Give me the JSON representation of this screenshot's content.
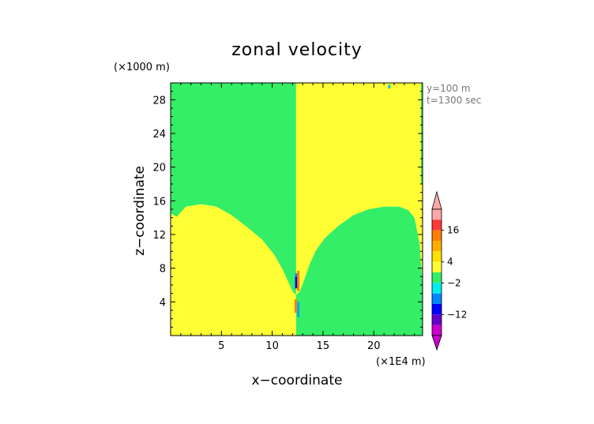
{
  "chart_data": {
    "type": "heatmap",
    "title": "zonal velocity",
    "xlabel": "x−coordinate",
    "ylabel": "z−coordinate",
    "x_unit": "(×1E4 m)",
    "y_unit": "(×1000 m)",
    "annotations": [
      "y=100 m",
      "t=1300 sec"
    ],
    "xlim": [
      0,
      24.8
    ],
    "ylim": [
      0,
      30
    ],
    "x_ticks": [
      5,
      10,
      15,
      20
    ],
    "y_ticks": [
      4,
      8,
      12,
      16,
      20,
      24,
      28
    ],
    "colorbar": {
      "tick_labels": [
        "16",
        "4",
        "−2",
        "−12"
      ],
      "colors": [
        "#ffa8a8",
        "#ff3838",
        "#ff7f00",
        "#ffae00",
        "#ffe000",
        "#ffff33",
        "#33ee66",
        "#00eeee",
        "#0088ff",
        "#0000ff",
        "#6600cc",
        "#cc00cc"
      ]
    },
    "regions": [
      {
        "name": "lower-left positive",
        "color": "#ffff33"
      },
      {
        "name": "lower-right negative",
        "color": "#33ee66"
      },
      {
        "name": "upper-left negative",
        "color": "#33ee66"
      },
      {
        "name": "upper-right positive",
        "color": "#ffff33"
      }
    ],
    "interface_left": [
      [
        0,
        14.5
      ],
      [
        0.6,
        14.1
      ],
      [
        1.5,
        15.3
      ],
      [
        3,
        15.6
      ],
      [
        4.5,
        15.3
      ],
      [
        6,
        14.3
      ],
      [
        7.5,
        12.9
      ],
      [
        9,
        11.4
      ],
      [
        10.2,
        9.6
      ],
      [
        11,
        7.9
      ],
      [
        11.6,
        6.3
      ],
      [
        12.0,
        5.2
      ],
      [
        12.35,
        4.8
      ]
    ],
    "interface_right": [
      [
        12.35,
        4.8
      ],
      [
        12.7,
        5.2
      ],
      [
        13.2,
        6.8
      ],
      [
        13.7,
        8.5
      ],
      [
        14.3,
        10.1
      ],
      [
        15.2,
        11.6
      ],
      [
        16.5,
        13.0
      ],
      [
        18,
        14.3
      ],
      [
        19.5,
        15.0
      ],
      [
        21,
        15.3
      ],
      [
        22.5,
        15.3
      ],
      [
        23.4,
        14.9
      ],
      [
        24.0,
        14.0
      ],
      [
        24.5,
        11.0
      ],
      [
        24.8,
        6
      ]
    ],
    "divider_x": 12.35
  }
}
